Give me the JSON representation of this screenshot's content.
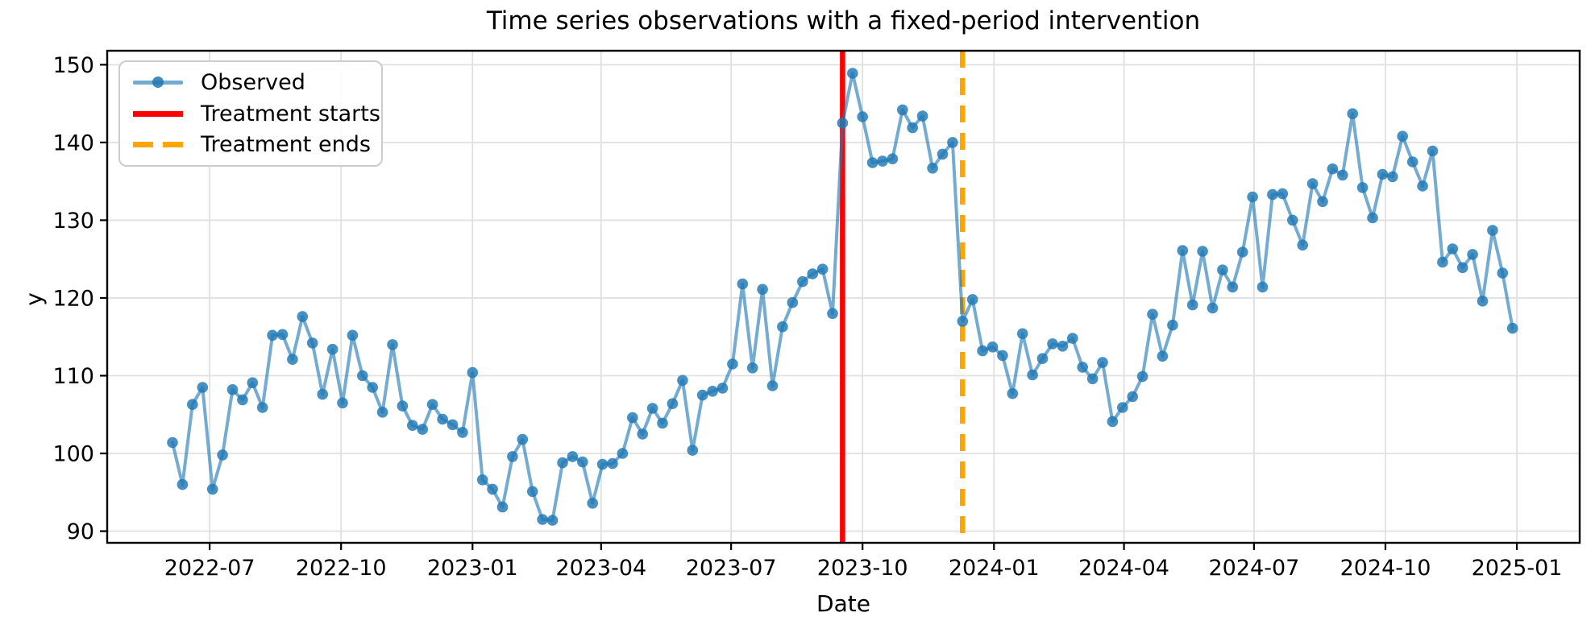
{
  "chart_data": {
    "type": "line",
    "title": "Time series observations with a fixed-period intervention",
    "xlabel": "Date",
    "ylabel": "y",
    "grid": true,
    "legend_position": "upper left",
    "background": "#ffffff",
    "grid_color": "#e0e0e0",
    "x_tick_labels": [
      "2022-07",
      "2022-10",
      "2023-01",
      "2023-04",
      "2023-07",
      "2023-10",
      "2024-01",
      "2024-04",
      "2024-07",
      "2024-10",
      "2025-01"
    ],
    "y_ticks": [
      90,
      100,
      110,
      120,
      130,
      140,
      150
    ],
    "ylim": [
      88.5,
      151.8
    ],
    "x_start_date": "2022-06-05",
    "x_freq": "weekly",
    "series": [
      {
        "name": "Observed",
        "color": "#1f77b4",
        "marker": "o",
        "values": [
          101.4,
          96.0,
          106.3,
          108.5,
          95.4,
          99.8,
          108.2,
          106.9,
          109.1,
          105.9,
          115.2,
          115.3,
          112.1,
          117.6,
          114.2,
          107.6,
          113.4,
          106.5,
          115.2,
          110.0,
          108.5,
          105.3,
          114.0,
          106.1,
          103.6,
          103.1,
          106.3,
          104.4,
          103.7,
          102.7,
          110.4,
          96.6,
          95.4,
          93.1,
          99.6,
          101.8,
          95.1,
          91.5,
          91.4,
          98.8,
          99.6,
          98.9,
          93.6,
          98.6,
          98.7,
          100.0,
          104.6,
          102.5,
          105.8,
          103.9,
          106.4,
          109.4,
          100.4,
          107.5,
          108.0,
          108.4,
          111.5,
          121.8,
          111.0,
          121.1,
          108.7,
          116.3,
          119.4,
          122.1,
          123.1,
          123.7,
          118.0,
          142.5,
          148.9,
          143.3,
          137.4,
          137.6,
          137.9,
          144.2,
          141.9,
          143.4,
          136.7,
          138.5,
          140.0,
          117.0,
          119.8,
          113.2,
          113.7,
          112.6,
          107.7,
          115.4,
          110.1,
          112.2,
          114.1,
          113.8,
          114.8,
          111.1,
          109.6,
          111.7,
          104.1,
          105.9,
          107.3,
          109.9,
          117.9,
          112.5,
          116.5,
          126.1,
          119.1,
          126.0,
          118.7,
          123.6,
          121.4,
          125.9,
          133.0,
          121.4,
          133.3,
          133.4,
          130.0,
          126.8,
          134.7,
          132.4,
          136.6,
          135.8,
          143.7,
          134.2,
          130.3,
          135.9,
          135.6,
          140.8,
          137.5,
          134.4,
          138.9,
          124.6,
          126.3,
          123.9,
          125.6,
          119.6,
          128.7,
          123.2,
          116.1
        ]
      }
    ],
    "vlines": [
      {
        "name": "Treatment starts",
        "date": "2023-09-17",
        "color": "#ff0000",
        "style": "solid"
      },
      {
        "name": "Treatment ends",
        "date": "2023-12-10",
        "color": "#ffa500",
        "style": "dashed"
      }
    ]
  }
}
